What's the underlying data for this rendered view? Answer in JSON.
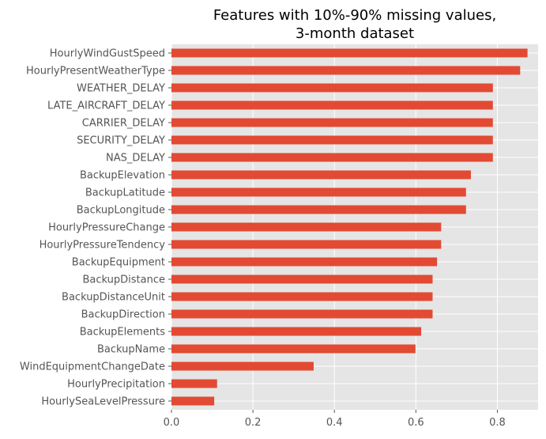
{
  "chart_data": {
    "type": "bar",
    "orientation": "horizontal",
    "title": "Features with 10%-90% missing values,\n3-month dataset",
    "title_lines": [
      "Features with 10%-90% missing values,",
      "3-month dataset"
    ],
    "xlabel": "",
    "ylabel": "",
    "xlim": [
      0,
      0.9
    ],
    "x_ticks": [
      0.0,
      0.2,
      0.4,
      0.6,
      0.8
    ],
    "x_tick_labels": [
      "0.0",
      "0.2",
      "0.4",
      "0.6",
      "0.8"
    ],
    "grid": true,
    "legend": "none",
    "bar_color": "#E24A33",
    "background_color": "#E5E5E5",
    "grid_color": "#FFFFFF",
    "categories": [
      "HourlyWindGustSpeed",
      "HourlyPresentWeatherType",
      "WEATHER_DELAY",
      "LATE_AIRCRAFT_DELAY",
      "CARRIER_DELAY",
      "SECURITY_DELAY",
      "NAS_DELAY",
      "BackupElevation",
      "BackupLatitude",
      "BackupLongitude",
      "HourlyPressureChange",
      "HourlyPressureTendency",
      "BackupEquipment",
      "BackupDistance",
      "BackupDistanceUnit",
      "BackupDirection",
      "BackupElements",
      "BackupName",
      "WindEquipmentChangeDate",
      "HourlyPrecipitation",
      "HourlySeaLevelPressure"
    ],
    "values": [
      0.874,
      0.856,
      0.789,
      0.789,
      0.789,
      0.789,
      0.789,
      0.735,
      0.723,
      0.723,
      0.662,
      0.662,
      0.652,
      0.641,
      0.641,
      0.641,
      0.613,
      0.599,
      0.349,
      0.112,
      0.105
    ]
  }
}
